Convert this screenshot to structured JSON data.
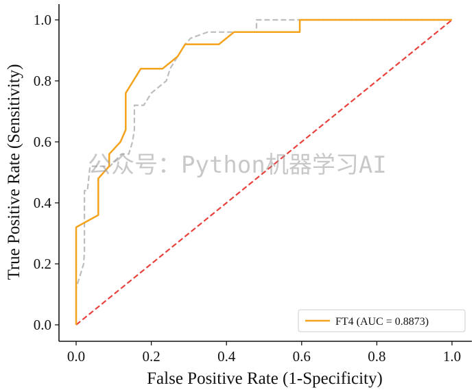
{
  "chart_data": {
    "type": "line",
    "title": "",
    "xlabel": "False Positive Rate (1-Specificity)",
    "ylabel": "True Positive Rate (Sensitivity)",
    "xlim": [
      0,
      1
    ],
    "ylim": [
      0,
      1
    ],
    "xticks": [
      "0.0",
      "0.2",
      "0.4",
      "0.6",
      "0.8",
      "1.0"
    ],
    "yticks": [
      "0.0",
      "0.2",
      "0.4",
      "0.6",
      "0.8",
      "1.0"
    ],
    "grid": false,
    "legend_position": "bottom-right",
    "series": [
      {
        "name": "FT4 (AUC = 0.8873)",
        "style": "solid",
        "color": "#F5A21B",
        "x": [
          0,
          0,
          0.059,
          0.059,
          0.088,
          0.088,
          0.118,
          0.132,
          0.132,
          0.172,
          0.23,
          0.27,
          0.29,
          0.38,
          0.42,
          0.595,
          0.595,
          1.0
        ],
        "y": [
          0,
          0.32,
          0.36,
          0.48,
          0.52,
          0.56,
          0.6,
          0.64,
          0.76,
          0.84,
          0.84,
          0.88,
          0.92,
          0.92,
          0.96,
          0.96,
          1.0,
          1.0
        ]
      },
      {
        "name": "",
        "style": "dashed",
        "color": "#BDBDBD",
        "x": [
          0,
          0,
          0.01,
          0.02,
          0.022,
          0.022,
          0.03,
          0.037,
          0.045,
          0.06,
          0.075,
          0.09,
          0.12,
          0.14,
          0.15,
          0.155,
          0.155,
          0.18,
          0.2,
          0.24,
          0.25,
          0.29,
          0.305,
          0.35,
          0.44,
          0.48,
          0.48,
          0.595,
          0.6,
          1.0
        ],
        "y": [
          0,
          0.12,
          0.16,
          0.2,
          0.24,
          0.44,
          0.44,
          0.52,
          0.52,
          0.52,
          0.52,
          0.52,
          0.56,
          0.56,
          0.6,
          0.64,
          0.72,
          0.72,
          0.76,
          0.8,
          0.84,
          0.92,
          0.94,
          0.96,
          0.96,
          0.96,
          1.0,
          1.0,
          1.0,
          1.0
        ]
      },
      {
        "name": "",
        "style": "dashed",
        "color": "#E8403A",
        "x": [
          0,
          1
        ],
        "y": [
          0,
          1
        ]
      }
    ],
    "annotations": [
      "公众号：Python机器学习AI"
    ]
  }
}
